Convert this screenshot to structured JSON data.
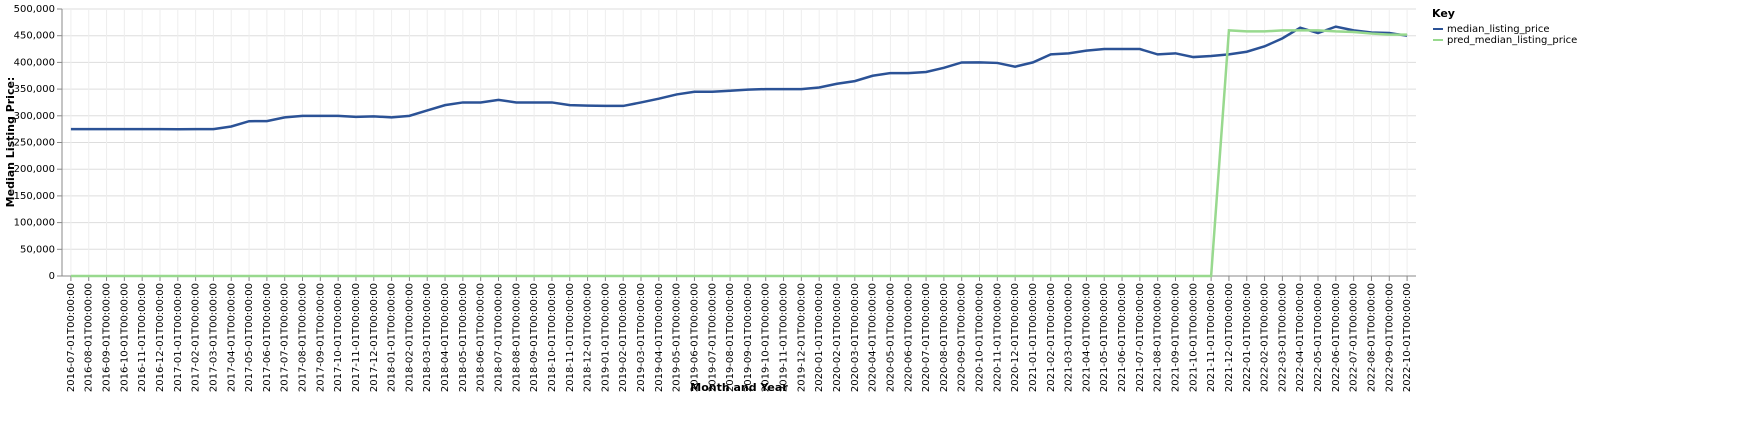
{
  "chart_data": {
    "type": "line",
    "x_label": "Month and Year",
    "y_label": "Median Listing Price:",
    "legend_title": "Key",
    "legend_position": "right",
    "grid": true,
    "categories": [
      "2016-07-01T00:00:00",
      "2016-08-01T00:00:00",
      "2016-09-01T00:00:00",
      "2016-10-01T00:00:00",
      "2016-11-01T00:00:00",
      "2016-12-01T00:00:00",
      "2017-01-01T00:00:00",
      "2017-02-01T00:00:00",
      "2017-03-01T00:00:00",
      "2017-04-01T00:00:00",
      "2017-05-01T00:00:00",
      "2017-06-01T00:00:00",
      "2017-07-01T00:00:00",
      "2017-08-01T00:00:00",
      "2017-09-01T00:00:00",
      "2017-10-01T00:00:00",
      "2017-11-01T00:00:00",
      "2017-12-01T00:00:00",
      "2018-01-01T00:00:00",
      "2018-02-01T00:00:00",
      "2018-03-01T00:00:00",
      "2018-04-01T00:00:00",
      "2018-05-01T00:00:00",
      "2018-06-01T00:00:00",
      "2018-07-01T00:00:00",
      "2018-08-01T00:00:00",
      "2018-09-01T00:00:00",
      "2018-10-01T00:00:00",
      "2018-11-01T00:00:00",
      "2018-12-01T00:00:00",
      "2019-01-01T00:00:00",
      "2019-02-01T00:00:00",
      "2019-03-01T00:00:00",
      "2019-04-01T00:00:00",
      "2019-05-01T00:00:00",
      "2019-06-01T00:00:00",
      "2019-07-01T00:00:00",
      "2019-08-01T00:00:00",
      "2019-09-01T00:00:00",
      "2019-10-01T00:00:00",
      "2019-11-01T00:00:00",
      "2019-12-01T00:00:00",
      "2020-01-01T00:00:00",
      "2020-02-01T00:00:00",
      "2020-03-01T00:00:00",
      "2020-04-01T00:00:00",
      "2020-05-01T00:00:00",
      "2020-06-01T00:00:00",
      "2020-07-01T00:00:00",
      "2020-08-01T00:00:00",
      "2020-09-01T00:00:00",
      "2020-10-01T00:00:00",
      "2020-11-01T00:00:00",
      "2020-12-01T00:00:00",
      "2021-01-01T00:00:00",
      "2021-02-01T00:00:00",
      "2021-03-01T00:00:00",
      "2021-04-01T00:00:00",
      "2021-05-01T00:00:00",
      "2021-06-01T00:00:00",
      "2021-07-01T00:00:00",
      "2021-08-01T00:00:00",
      "2021-09-01T00:00:00",
      "2021-10-01T00:00:00",
      "2021-11-01T00:00:00",
      "2021-12-01T00:00:00",
      "2022-01-01T00:00:00",
      "2022-02-01T00:00:00",
      "2022-03-01T00:00:00",
      "2022-04-01T00:00:00",
      "2022-05-01T00:00:00",
      "2022-06-01T00:00:00",
      "2022-07-01T00:00:00",
      "2022-08-01T00:00:00",
      "2022-09-01T00:00:00",
      "2022-10-01T00:00:00"
    ],
    "series": [
      {
        "name": "median_listing_price",
        "color": "#2b5296",
        "values": [
          275000,
          275000,
          275000,
          275000,
          275000,
          275000,
          274900,
          275000,
          275000,
          280000,
          289900,
          290000,
          297000,
          299900,
          299900,
          299900,
          298000,
          299000,
          297000,
          299900,
          310000,
          320000,
          325000,
          325000,
          329900,
          325000,
          325000,
          325000,
          320000,
          319000,
          318500,
          318500,
          325000,
          332000,
          340000,
          345000,
          345000,
          347000,
          349000,
          350000,
          350000,
          350000,
          353000,
          360000,
          365000,
          375000,
          380000,
          379900,
          382000,
          389900,
          399900,
          400000,
          399000,
          392000,
          400000,
          415000,
          417000,
          422000,
          425000,
          425000,
          425000,
          415000,
          417000,
          410000,
          412000,
          415000,
          420000,
          430000,
          445000,
          465000,
          455000,
          467000,
          460000,
          456000,
          455000,
          450000
        ]
      },
      {
        "name": "pred_median_listing_price",
        "color": "#98d98e",
        "values": [
          0,
          0,
          0,
          0,
          0,
          0,
          0,
          0,
          0,
          0,
          0,
          0,
          0,
          0,
          0,
          0,
          0,
          0,
          0,
          0,
          0,
          0,
          0,
          0,
          0,
          0,
          0,
          0,
          0,
          0,
          0,
          0,
          0,
          0,
          0,
          0,
          0,
          0,
          0,
          0,
          0,
          0,
          0,
          0,
          0,
          0,
          0,
          0,
          0,
          0,
          0,
          0,
          0,
          0,
          0,
          0,
          0,
          0,
          0,
          0,
          0,
          0,
          0,
          0,
          0,
          460000,
          458000,
          458000,
          460000,
          460000,
          460000,
          458000,
          457000,
          454000,
          452000,
          452000
        ]
      }
    ],
    "ylim": [
      0,
      500000
    ],
    "yticks": [
      {
        "value": 0,
        "label": "0"
      },
      {
        "value": 50000,
        "label": "50,000"
      },
      {
        "value": 100000,
        "label": "100,000"
      },
      {
        "value": 150000,
        "label": "150,000"
      },
      {
        "value": 200000,
        "label": "200,000"
      },
      {
        "value": 250000,
        "label": "250,000"
      },
      {
        "value": 300000,
        "label": "300,000"
      },
      {
        "value": 350000,
        "label": "350,000"
      },
      {
        "value": 400000,
        "label": "400,000"
      },
      {
        "value": 450000,
        "label": "450,000"
      },
      {
        "value": 500000,
        "label": "500,000"
      }
    ]
  }
}
